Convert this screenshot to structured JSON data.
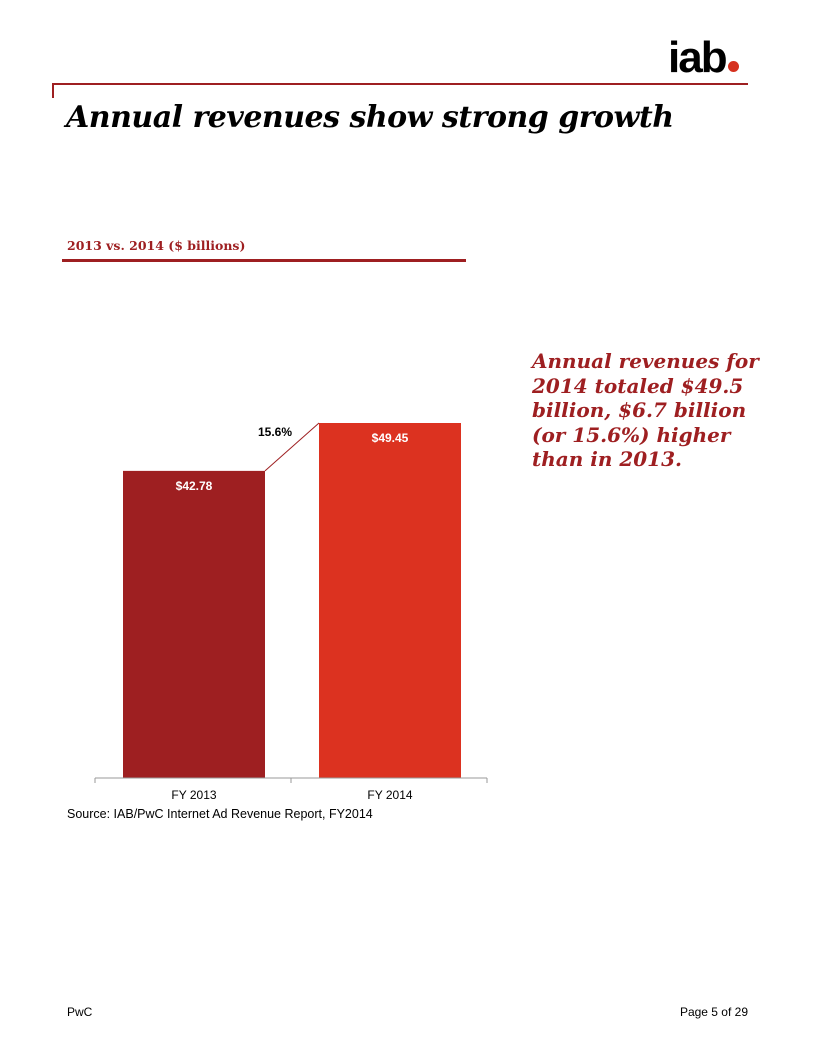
{
  "header": {
    "logo_text": "iab",
    "title": "Annual revenues show strong growth"
  },
  "colors": {
    "accent": "#9e1f21",
    "bar_2013": "#9e1f21",
    "bar_2014": "#dc3220",
    "logo_dot": "#d6311f"
  },
  "chart_data": {
    "type": "bar",
    "title": "2013 vs. 2014 ($ billions)",
    "categories": [
      "FY 2013",
      "FY 2014"
    ],
    "values": [
      42.78,
      49.45
    ],
    "value_labels": [
      "$42.78",
      "$49.45"
    ],
    "growth_label": "15.6%",
    "ylim": [
      0,
      49.45
    ],
    "xlabel": "",
    "ylabel": "",
    "grid": false
  },
  "callout": {
    "text": "Annual revenues for 2014 totaled $49.5 billion, $6.7 billion (or 15.6%) higher than in 2013."
  },
  "source": "Source: IAB/PwC Internet Ad Revenue Report, FY2014",
  "footer": {
    "left": "PwC",
    "right": "Page 5 of 29"
  }
}
